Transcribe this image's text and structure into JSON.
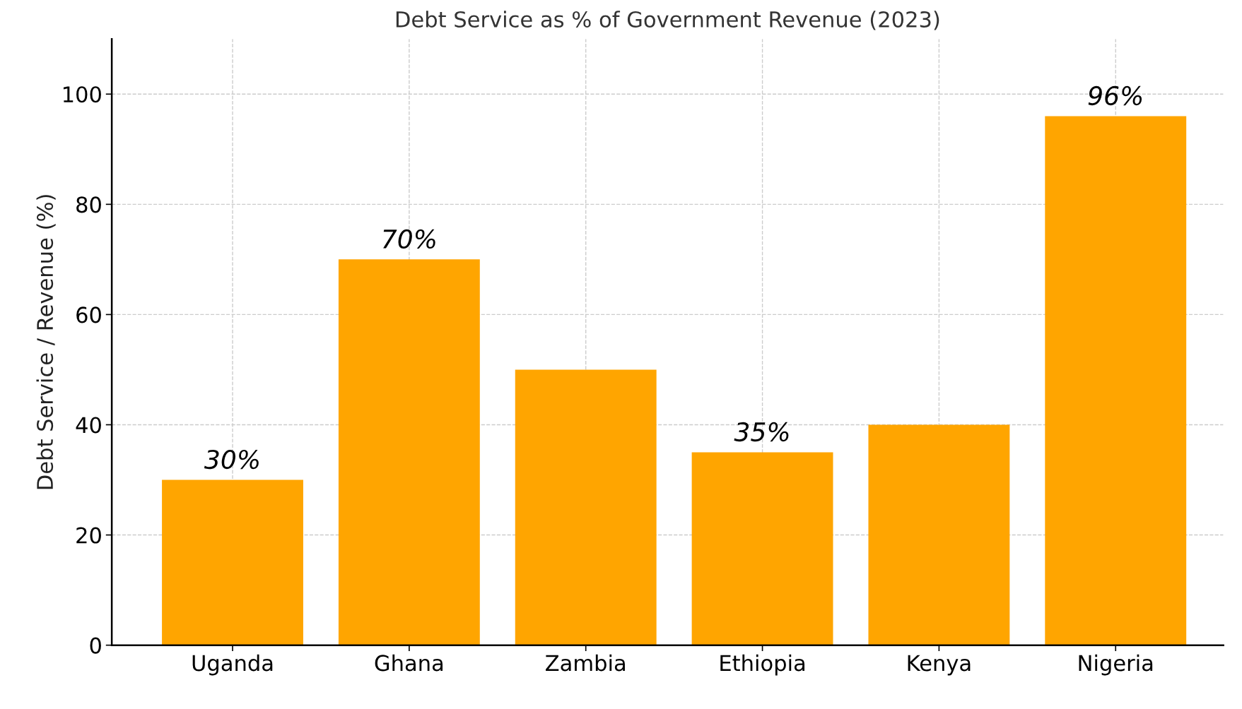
{
  "chart_data": {
    "type": "bar",
    "title": "Debt Service as % of Government Revenue (2023)",
    "ylabel": "Debt Service / Revenue (%)",
    "categories": [
      "Uganda",
      "Ghana",
      "Zambia",
      "Ethiopia",
      "Kenya",
      "Nigeria"
    ],
    "values": [
      30,
      70,
      50,
      35,
      40,
      96
    ],
    "value_labels": [
      "30%",
      "70%",
      null,
      "35%",
      null,
      "96%"
    ],
    "color": "#ffa500",
    "ylim": [
      0,
      110
    ],
    "yticks": [
      0,
      20,
      40,
      60,
      80,
      100
    ],
    "grid": true,
    "line_style": "dashed"
  }
}
